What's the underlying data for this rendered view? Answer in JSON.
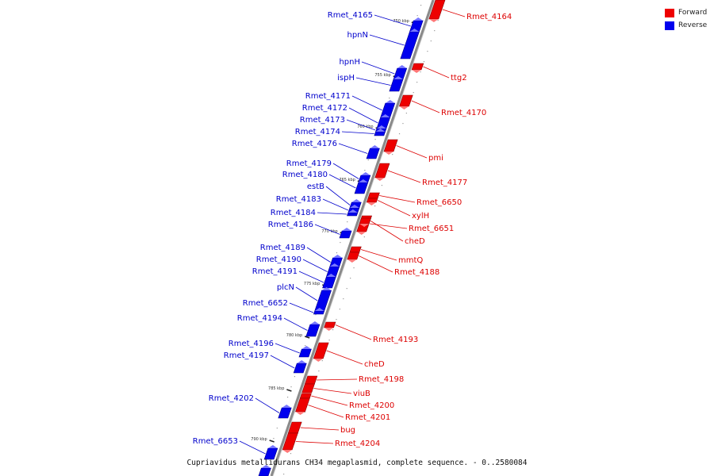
{
  "legend": {
    "forward_label": "Forward",
    "reverse_label": "Reverse",
    "forward_color": "#ee0000",
    "reverse_color": "#0000ee"
  },
  "caption": "Cupriavidus metallidurans CH34 megaplasmid, complete sequence. - 0..2580084",
  "scale_labels": [
    "750 kbp",
    "755 kbp",
    "760 kbp",
    "765 kbp",
    "770 kbp",
    "775 kbp",
    "780 kbp",
    "785 kbp",
    "790 kbp"
  ],
  "forward_genes": [
    "Rmet_4164",
    "ttg2",
    "Rmet_4170",
    "pmi",
    "Rmet_4177",
    "Rmet_6650",
    "xylH",
    "Rmet_6651",
    "cheD",
    "mmtQ",
    "Rmet_4188",
    "Rmet_4193",
    "cheD",
    "Rmet_4198",
    "viuB",
    "Rmet_4200",
    "Rmet_4201",
    "bug",
    "Rmet_4204"
  ],
  "reverse_genes": [
    "Rmet_4165",
    "hpnN",
    "hpnH",
    "ispH",
    "Rmet_4171",
    "Rmet_4172",
    "Rmet_4173",
    "Rmet_4174",
    "Rmet_4176",
    "Rmet_4179",
    "Rmet_4180",
    "estB",
    "Rmet_4183",
    "Rmet_4184",
    "Rmet_4186",
    "Rmet_4189",
    "Rmet_4190",
    "Rmet_4191",
    "plcN",
    "Rmet_6652",
    "Rmet_4194",
    "Rmet_4196",
    "Rmet_4197",
    "Rmet_4202",
    "Rmet_6653"
  ]
}
